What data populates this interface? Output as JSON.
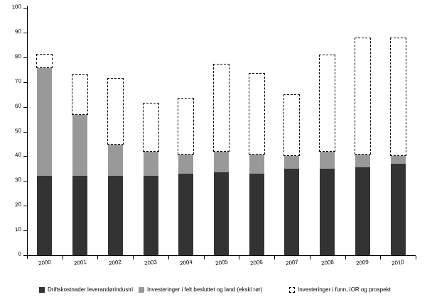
{
  "figure": {
    "background": "#ffffff",
    "axis_color": "#000000"
  },
  "chart_data": {
    "type": "bar",
    "stacked": true,
    "title": "",
    "xlabel": "",
    "ylabel": "",
    "categories": [
      "2000",
      "2001",
      "2002",
      "2003",
      "2004",
      "2005",
      "2006",
      "2007",
      "2008",
      "2009",
      "2010"
    ],
    "series": [
      {
        "name": "Driftskostnader leverandørindustri",
        "style": "solid",
        "color": "#333333",
        "values": [
          32,
          32,
          32,
          32,
          33,
          33.5,
          33,
          35,
          35,
          35.5,
          37
        ]
      },
      {
        "name": "Investeringer i felt besluttet og land (ekskl rør)",
        "style": "solid",
        "color": "#999999",
        "values": [
          44,
          25,
          13,
          10,
          8,
          8.5,
          8,
          5.5,
          7,
          5.5,
          3.5
        ]
      },
      {
        "name": "Investeringer i funn, IOR og prospekt",
        "style": "dashed-outline",
        "color": "#ffffff",
        "border_color": "#000000",
        "values": [
          5.5,
          16,
          26.5,
          19.5,
          22.5,
          35.5,
          32.5,
          24.5,
          39,
          47,
          47.5
        ]
      }
    ],
    "ylim": [
      0,
      100
    ],
    "y_tick_step": 10,
    "y_tick_labels": [
      "0",
      "10",
      "20",
      "30",
      "40",
      "50",
      "60",
      "70",
      "80",
      "90",
      "100"
    ],
    "grid": false,
    "legend_position": "bottom"
  }
}
